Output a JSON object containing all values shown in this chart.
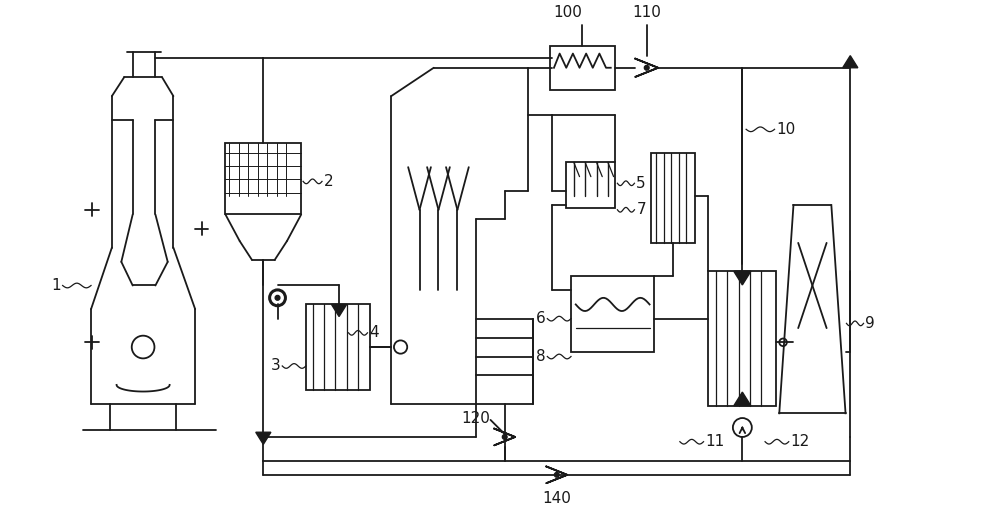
{
  "bg_color": "#ffffff",
  "line_color": "#1a1a1a",
  "fig_width": 10.0,
  "fig_height": 5.08,
  "dpi": 100
}
